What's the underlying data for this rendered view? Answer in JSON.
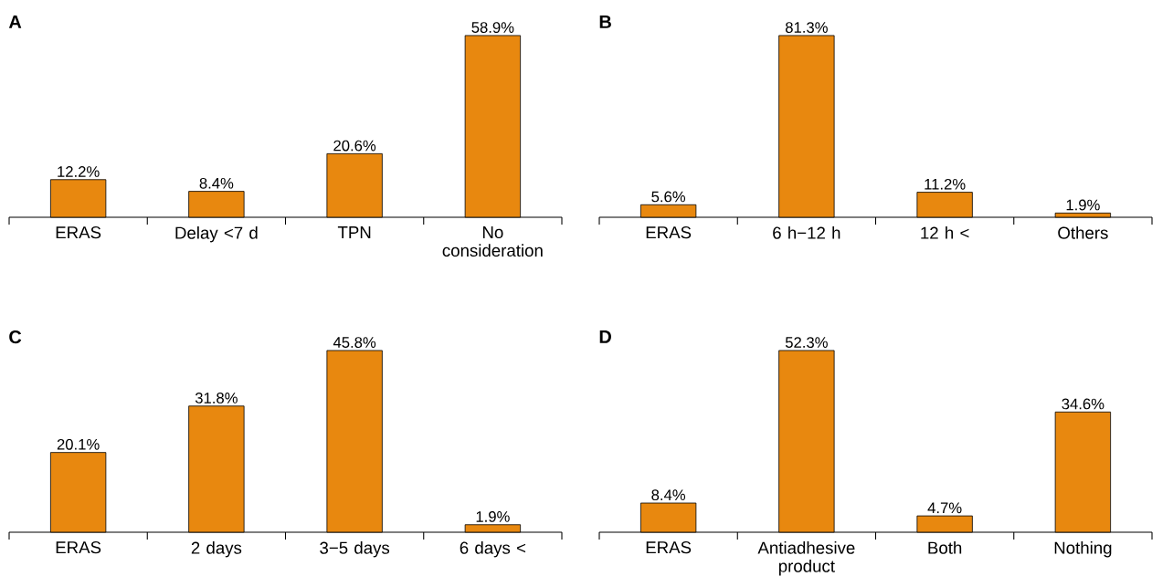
{
  "chart_data": [
    {
      "type": "bar",
      "title": "A",
      "categories": [
        "ERAS",
        "Delay <7 d",
        "TPN",
        "No consideration"
      ],
      "values": [
        12.2,
        8.4,
        20.6,
        58.9
      ],
      "value_labels": [
        "12.2%",
        "8.4%",
        "20.6%",
        "58.9%"
      ],
      "color": "#e8880f"
    },
    {
      "type": "bar",
      "title": "B",
      "categories": [
        "ERAS",
        "6 h−12 h",
        "12 h <",
        "Others"
      ],
      "values": [
        5.6,
        81.3,
        11.2,
        1.9
      ],
      "value_labels": [
        "5.6%",
        "81.3%",
        "11.2%",
        "1.9%"
      ],
      "color": "#e8880f"
    },
    {
      "type": "bar",
      "title": "C",
      "categories": [
        "ERAS",
        "2 days",
        "3−5 days",
        "6 days <"
      ],
      "values": [
        20.1,
        31.8,
        45.8,
        1.9
      ],
      "value_labels": [
        "20.1%",
        "31.8%",
        "45.8%",
        "1.9%"
      ],
      "color": "#e8880f"
    },
    {
      "type": "bar",
      "title": "D",
      "categories": [
        "ERAS",
        "Antiadhesive product",
        "Both",
        "Nothing"
      ],
      "values": [
        8.4,
        52.3,
        4.7,
        34.6
      ],
      "value_labels": [
        "8.4%",
        "52.3%",
        "4.7%",
        "34.6%"
      ],
      "color": "#e8880f"
    }
  ]
}
